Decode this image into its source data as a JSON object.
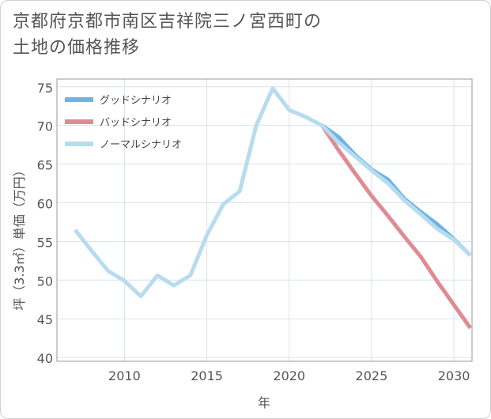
{
  "chart_data": {
    "type": "line",
    "title": "京都府京都市南区吉祥院三ノ宮西町の\n土地の価格推移",
    "xlabel": "年",
    "ylabel": "坪（3.3㎡）単価（万円）",
    "xlim": [
      2005.9,
      2031.1
    ],
    "ylim": [
      39.5,
      76.0
    ],
    "x_ticks": [
      2010,
      2015,
      2020,
      2025,
      2030
    ],
    "y_ticks": [
      40,
      45,
      50,
      55,
      60,
      65,
      70,
      75
    ],
    "legend_position": "top-left",
    "series": [
      {
        "name": "グッドシナリオ",
        "color": "#6cb4e8",
        "x": [
          2022,
          2023,
          2024,
          2025,
          2026,
          2027,
          2028,
          2029,
          2030,
          2031
        ],
        "y": [
          70.0,
          68.5,
          66.2,
          64.3,
          63.0,
          60.5,
          58.8,
          57.2,
          55.3,
          53.2
        ]
      },
      {
        "name": "バッドシナリオ",
        "color": "#e08b94",
        "x": [
          2022,
          2023,
          2024,
          2025,
          2026,
          2027,
          2028,
          2029,
          2030,
          2031
        ],
        "y": [
          70.0,
          66.8,
          63.8,
          60.9,
          58.3,
          55.6,
          53.0,
          49.8,
          46.8,
          43.8
        ]
      },
      {
        "name": "ノーマルシナリオ",
        "color": "#b7dcee",
        "x": [
          2007,
          2008,
          2009,
          2010,
          2011,
          2012,
          2013,
          2014,
          2015,
          2016,
          2017,
          2018,
          2019,
          2020,
          2021,
          2022,
          2023,
          2024,
          2025,
          2026,
          2027,
          2028,
          2029,
          2030,
          2031
        ],
        "y": [
          56.5,
          53.8,
          51.2,
          49.9,
          47.9,
          50.6,
          49.3,
          50.6,
          55.8,
          59.8,
          61.5,
          70.0,
          74.8,
          72.0,
          71.1,
          70.0,
          67.8,
          66.0,
          64.2,
          62.5,
          60.3,
          58.5,
          56.6,
          55.2,
          53.2
        ]
      }
    ]
  }
}
